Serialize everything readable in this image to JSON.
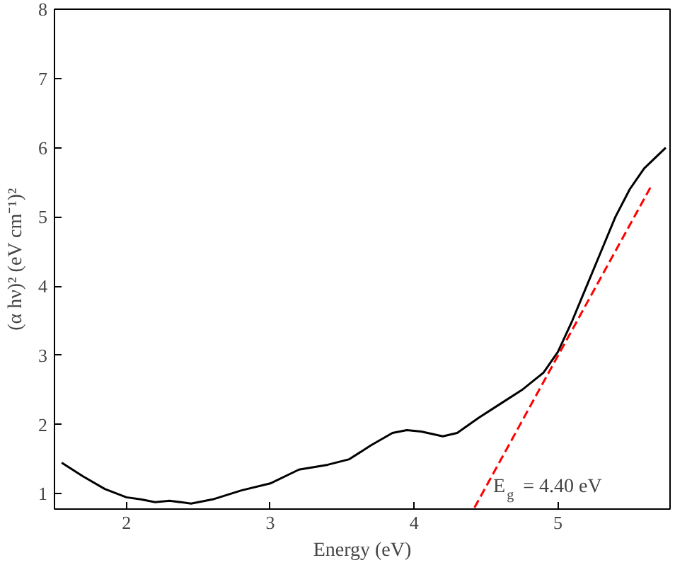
{
  "chart_data": {
    "type": "line",
    "xlabel": "Energy (eV)",
    "ylabel": "(α hν)² (eV cm⁻¹)²",
    "xlim": [
      1.5,
      5.78
    ],
    "ylim": [
      0.78,
      8
    ],
    "xticks": [
      2,
      3,
      4,
      5
    ],
    "yticks": [
      1,
      2,
      3,
      4,
      5,
      6,
      7,
      8
    ],
    "grid": false,
    "series": [
      {
        "color": "#000000",
        "line_style": "solid",
        "x": [
          1.55,
          1.7,
          1.85,
          2.0,
          2.1,
          2.2,
          2.3,
          2.45,
          2.6,
          2.8,
          3.0,
          3.2,
          3.4,
          3.55,
          3.7,
          3.85,
          3.95,
          4.05,
          4.2,
          4.3,
          4.45,
          4.6,
          4.75,
          4.9,
          5.0,
          5.1,
          5.2,
          5.3,
          5.4,
          5.5,
          5.6,
          5.75
        ],
        "values": [
          1.45,
          1.25,
          1.07,
          0.95,
          0.92,
          0.88,
          0.9,
          0.86,
          0.92,
          1.05,
          1.15,
          1.35,
          1.42,
          1.5,
          1.7,
          1.88,
          1.92,
          1.9,
          1.83,
          1.88,
          2.1,
          2.3,
          2.5,
          2.75,
          3.05,
          3.5,
          4.0,
          4.5,
          5.0,
          5.4,
          5.7,
          6.0
        ]
      },
      {
        "color": "#ff0000",
        "line_style": "dashed",
        "x": [
          4.42,
          5.65
        ],
        "values": [
          0.8,
          5.45
        ]
      }
    ],
    "annotations": [
      "E$_{g}$ = 4.40 eV"
    ]
  }
}
